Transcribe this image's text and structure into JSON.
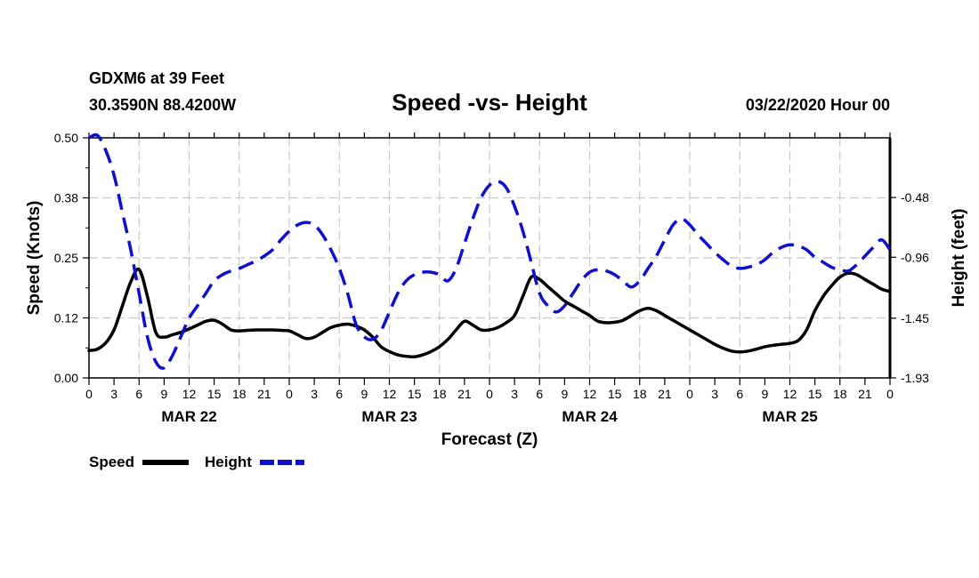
{
  "header": {
    "station": "GDXM6 at 39 Feet",
    "location": "30.3590N 88.4200W",
    "title": "Speed -vs- Height",
    "datetime": "03/22/2020 Hour 00"
  },
  "chart_data": {
    "type": "line",
    "title": "Speed -vs- Height",
    "xlabel": "Forecast (Z)",
    "ylabel": "Speed (Knots)",
    "y2label": "Height (feet)",
    "xlim": [
      0,
      96
    ],
    "ylim": [
      0.0,
      0.5
    ],
    "y2lim": [
      -1.93,
      0.0
    ],
    "yticks": [
      "0.00",
      "0.12",
      "0.25",
      "0.38",
      "0.50"
    ],
    "yticks_values": [
      0.0,
      0.125,
      0.25,
      0.375,
      0.5
    ],
    "y2ticks": [
      "-1.93",
      "-1.45",
      "-0.96",
      "-0.48"
    ],
    "y2ticks_values": [
      -1.93,
      -1.45,
      -0.96,
      -0.48
    ],
    "xtick_labels": [
      "0",
      "3",
      "6",
      "9",
      "12",
      "15",
      "18",
      "21",
      "0",
      "3",
      "6",
      "9",
      "12",
      "15",
      "18",
      "21",
      "0",
      "3",
      "6",
      "9",
      "12",
      "15",
      "18",
      "21",
      "0",
      "3",
      "6",
      "9",
      "12",
      "15",
      "18",
      "21",
      "0"
    ],
    "xtick_values": [
      0,
      3,
      6,
      9,
      12,
      15,
      18,
      21,
      24,
      27,
      30,
      33,
      36,
      39,
      42,
      45,
      48,
      51,
      54,
      57,
      60,
      63,
      66,
      69,
      72,
      75,
      78,
      81,
      84,
      87,
      90,
      93,
      96
    ],
    "day_labels": [
      {
        "label": "MAR 22",
        "x": 12
      },
      {
        "label": "MAR 23",
        "x": 36
      },
      {
        "label": "MAR 24",
        "x": 60
      },
      {
        "label": "MAR 25",
        "x": 84
      }
    ],
    "grid": true,
    "legend_position": "bottom-left",
    "series": [
      {
        "name": "Speed",
        "axis": "left",
        "style": "solid",
        "color": "#000000",
        "x": [
          0,
          1,
          2,
          3,
          4,
          5,
          6,
          7,
          8,
          9,
          10,
          11,
          12,
          13,
          14,
          15,
          16,
          17,
          18,
          19,
          20,
          21,
          22,
          23,
          24,
          25,
          26,
          27,
          28,
          29,
          30,
          31,
          32,
          33,
          34,
          35,
          36,
          37,
          38,
          39,
          40,
          41,
          42,
          43,
          44,
          45,
          46,
          47,
          48,
          49,
          50,
          51,
          52,
          53,
          54,
          55,
          56,
          57,
          58,
          59,
          60,
          61,
          62,
          63,
          64,
          65,
          66,
          67,
          68,
          69,
          70,
          71,
          72,
          73,
          74,
          75,
          76,
          77,
          78,
          79,
          80,
          81,
          82,
          83,
          84,
          85,
          86,
          87,
          88,
          89,
          90,
          91,
          92,
          93,
          94,
          95,
          96
        ],
        "values": [
          0.057,
          0.06,
          0.073,
          0.1,
          0.15,
          0.2,
          0.226,
          0.17,
          0.095,
          0.085,
          0.09,
          0.095,
          0.102,
          0.11,
          0.118,
          0.12,
          0.112,
          0.1,
          0.098,
          0.099,
          0.1,
          0.1,
          0.1,
          0.099,
          0.098,
          0.09,
          0.082,
          0.085,
          0.095,
          0.105,
          0.11,
          0.112,
          0.108,
          0.1,
          0.085,
          0.065,
          0.055,
          0.048,
          0.045,
          0.044,
          0.048,
          0.055,
          0.065,
          0.08,
          0.1,
          0.118,
          0.11,
          0.1,
          0.1,
          0.105,
          0.115,
          0.13,
          0.17,
          0.21,
          0.205,
          0.19,
          0.175,
          0.16,
          0.15,
          0.14,
          0.13,
          0.118,
          0.115,
          0.116,
          0.12,
          0.13,
          0.14,
          0.145,
          0.14,
          0.13,
          0.12,
          0.11,
          0.1,
          0.09,
          0.08,
          0.07,
          0.062,
          0.056,
          0.054,
          0.056,
          0.06,
          0.065,
          0.068,
          0.07,
          0.072,
          0.078,
          0.1,
          0.14,
          0.17,
          0.192,
          0.21,
          0.218,
          0.215,
          0.205,
          0.195,
          0.185,
          0.18
        ]
      },
      {
        "name": "Height",
        "axis": "right",
        "style": "dashed",
        "color": "#1010cc",
        "x": [
          0,
          1,
          2,
          3,
          4,
          5,
          6,
          7,
          8,
          9,
          10,
          11,
          12,
          13,
          14,
          15,
          16,
          17,
          18,
          19,
          20,
          21,
          22,
          23,
          24,
          25,
          26,
          27,
          28,
          29,
          30,
          31,
          32,
          33,
          34,
          35,
          36,
          37,
          38,
          39,
          40,
          41,
          42,
          43,
          44,
          45,
          46,
          47,
          48,
          49,
          50,
          51,
          52,
          53,
          54,
          55,
          56,
          57,
          58,
          59,
          60,
          61,
          62,
          63,
          64,
          65,
          66,
          67,
          68,
          69,
          70,
          71,
          72,
          73,
          74,
          75,
          76,
          77,
          78,
          79,
          80,
          81,
          82,
          83,
          84,
          85,
          86,
          87,
          88,
          89,
          90,
          91,
          92,
          93,
          94,
          95,
          96
        ],
        "values": [
          0.0,
          0.02,
          -0.1,
          -0.3,
          -0.6,
          -0.9,
          -1.25,
          -1.6,
          -1.8,
          -1.85,
          -1.75,
          -1.6,
          -1.45,
          -1.35,
          -1.25,
          -1.15,
          -1.1,
          -1.07,
          -1.05,
          -1.02,
          -0.99,
          -0.95,
          -0.9,
          -0.82,
          -0.75,
          -0.7,
          -0.68,
          -0.7,
          -0.78,
          -0.9,
          -1.05,
          -1.25,
          -1.5,
          -1.6,
          -1.62,
          -1.55,
          -1.4,
          -1.25,
          -1.15,
          -1.1,
          -1.08,
          -1.08,
          -1.1,
          -1.15,
          -1.05,
          -0.85,
          -0.65,
          -0.48,
          -0.38,
          -0.35,
          -0.4,
          -0.55,
          -0.75,
          -1.0,
          -1.25,
          -1.35,
          -1.4,
          -1.35,
          -1.25,
          -1.15,
          -1.08,
          -1.06,
          -1.07,
          -1.1,
          -1.15,
          -1.2,
          -1.15,
          -1.05,
          -0.95,
          -0.82,
          -0.7,
          -0.65,
          -0.7,
          -0.78,
          -0.85,
          -0.92,
          -0.98,
          -1.03,
          -1.05,
          -1.04,
          -1.02,
          -0.98,
          -0.92,
          -0.88,
          -0.86,
          -0.87,
          -0.9,
          -0.96,
          -1.0,
          -1.04,
          -1.06,
          -1.07,
          -1.02,
          -0.95,
          -0.88,
          -0.82,
          -0.9
        ]
      }
    ]
  },
  "legend": {
    "items": [
      {
        "label": "Speed",
        "color": "#000000",
        "style": "solid"
      },
      {
        "label": "Height",
        "color": "#1010cc",
        "style": "dashed"
      }
    ]
  }
}
